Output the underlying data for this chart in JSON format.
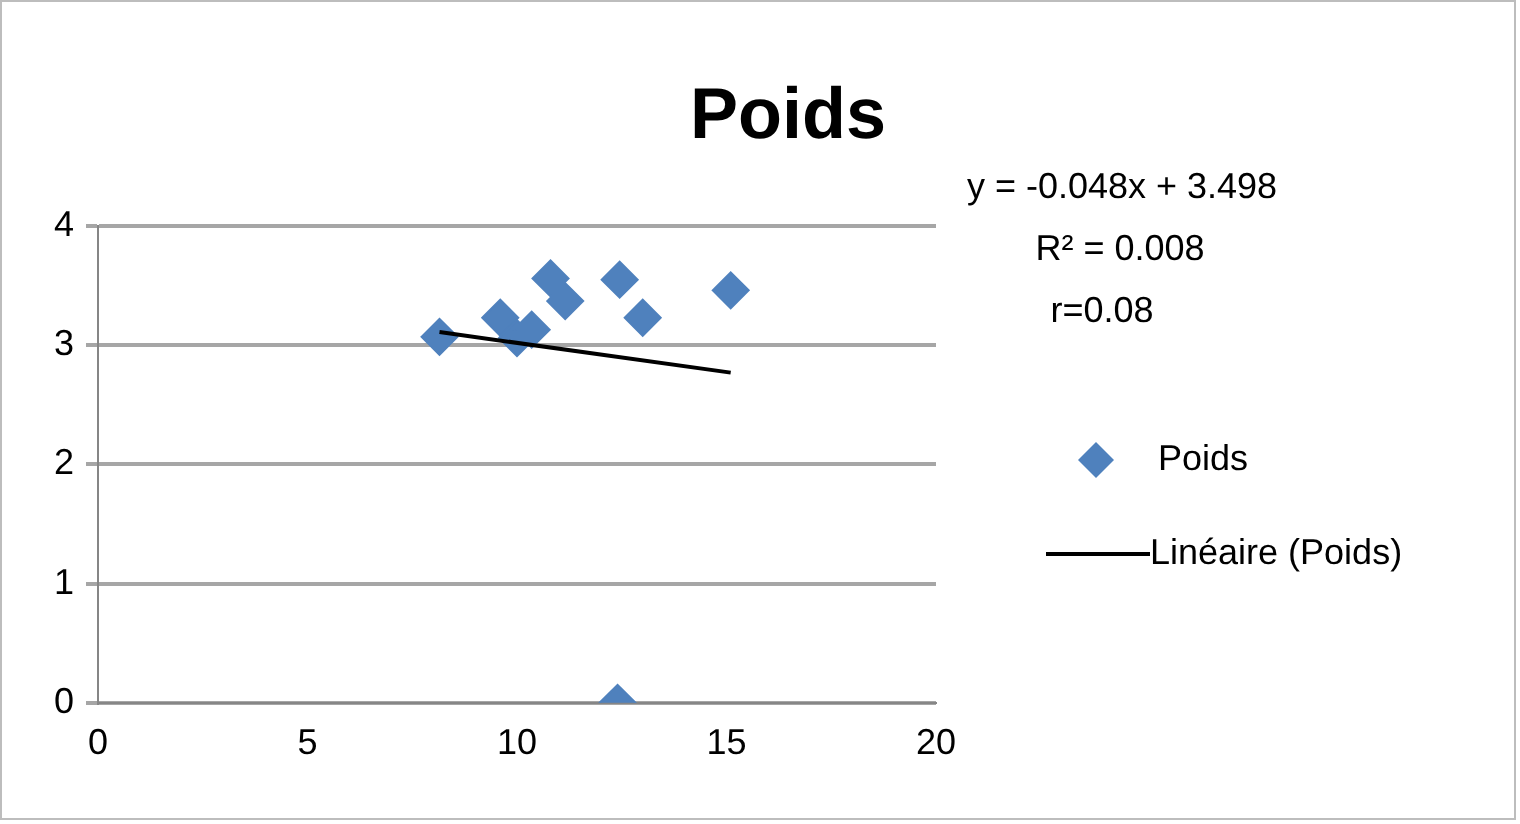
{
  "chart_data": {
    "type": "scatter",
    "title": "Poids",
    "xlim": [
      0,
      20
    ],
    "xticks": [
      0,
      5,
      10,
      15,
      20
    ],
    "ylim": [
      0,
      4
    ],
    "yticks": [
      0,
      1,
      2,
      3,
      4
    ],
    "grid": "y",
    "legend": "right",
    "marker": "diamond",
    "annotations": [
      "y = -0.048x + 3.498",
      "R² = 0.008",
      "r=0.08"
    ],
    "series": [
      {
        "name": "Poids",
        "color": "#4f81bd",
        "x": [
          8.15,
          9.6,
          10.0,
          10.35,
          10.8,
          11.15,
          12.45,
          13.0,
          15.1,
          12.4
        ],
        "values": [
          3.07,
          3.23,
          3.06,
          3.13,
          3.56,
          3.37,
          3.55,
          3.23,
          3.46,
          0
        ]
      },
      {
        "name": "Linéaire (Poids)",
        "type": "line",
        "color": "#000000",
        "marker": "none",
        "line_style": "solid",
        "x": [
          8.15,
          15.1
        ],
        "values": [
          3.11,
          2.77
        ]
      }
    ]
  }
}
